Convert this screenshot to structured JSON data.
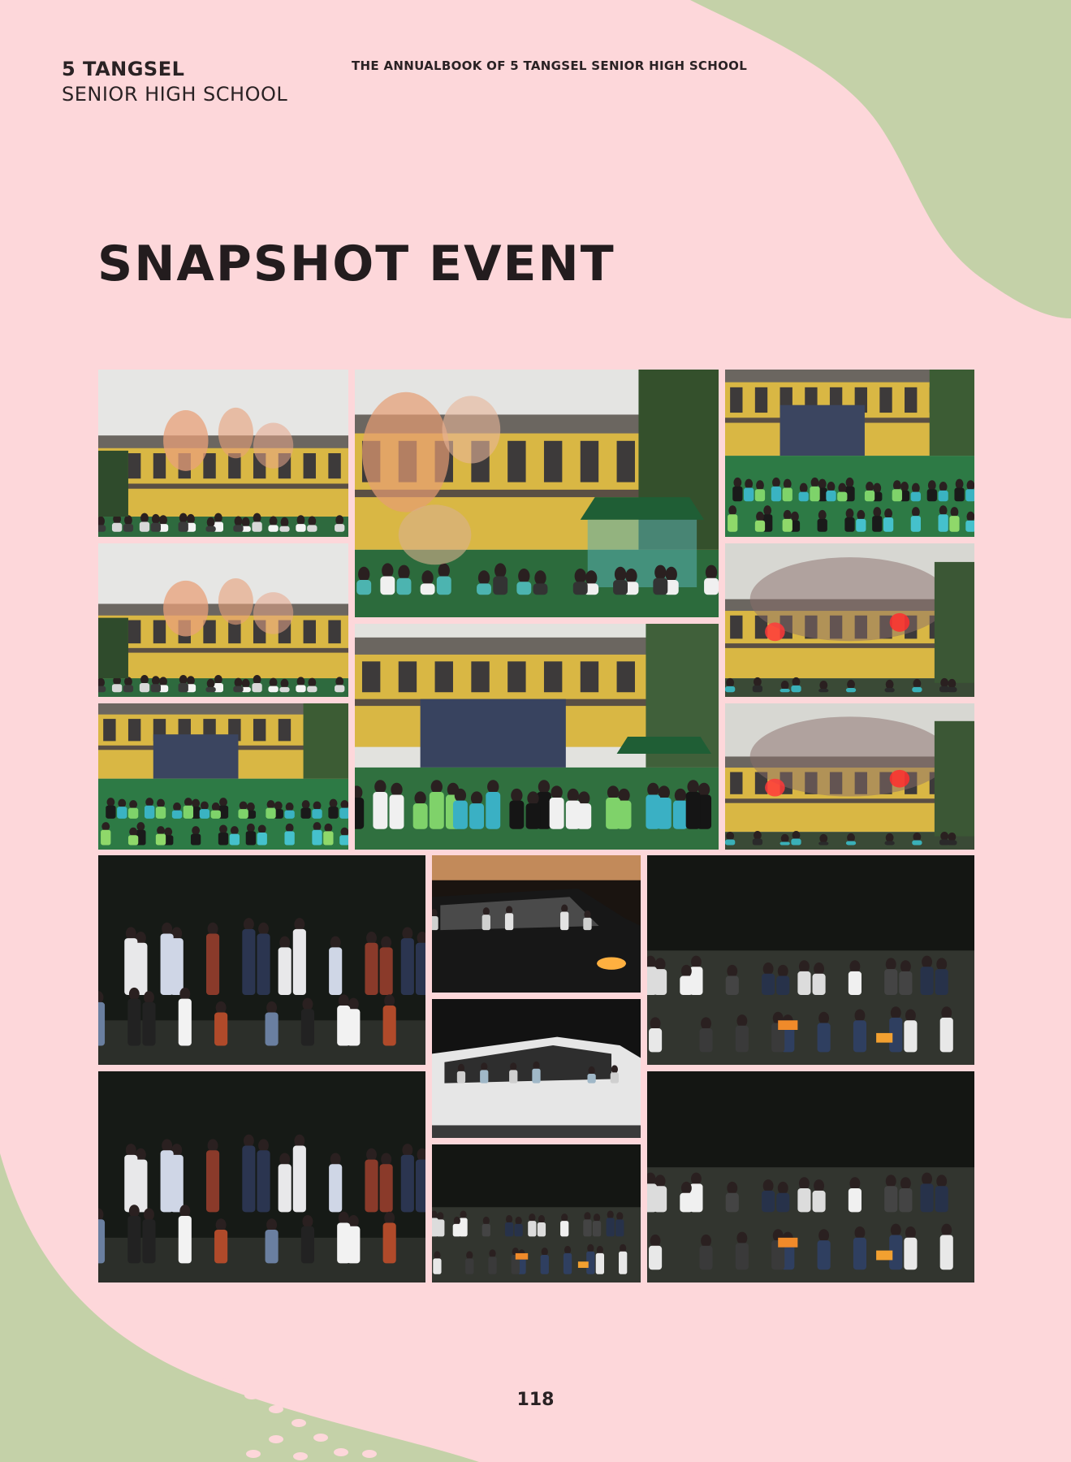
{
  "header": {
    "school_line1": "5 TANGSEL",
    "school_line2": "SENIOR HIGH SCHOOL",
    "book_title": "THE ANNUALBOOK OF 5 TANGSEL SENIOR HIGH SCHOOL"
  },
  "page_title": "SNAPSHOT EVENT",
  "page_number": "118",
  "colors": {
    "page_background": "#fdd7da",
    "decor_green": "#c4d1a8",
    "text": "#231c1e"
  },
  "photos": [
    {
      "scene": "school-smoke"
    },
    {
      "scene": "school-smoke-tent"
    },
    {
      "scene": "dance-field"
    },
    {
      "scene": "school-smoke"
    },
    {
      "scene": "school-stage-dance"
    },
    {
      "scene": "red-flare"
    },
    {
      "scene": "dance-field"
    },
    {
      "scene": "red-flare"
    },
    {
      "scene": "night-group"
    },
    {
      "scene": "car-dark"
    },
    {
      "scene": "night-sitting"
    },
    {
      "scene": "car-white"
    },
    {
      "scene": "night-group"
    },
    {
      "scene": "night-sitting"
    },
    {
      "scene": "night-sitting"
    }
  ]
}
